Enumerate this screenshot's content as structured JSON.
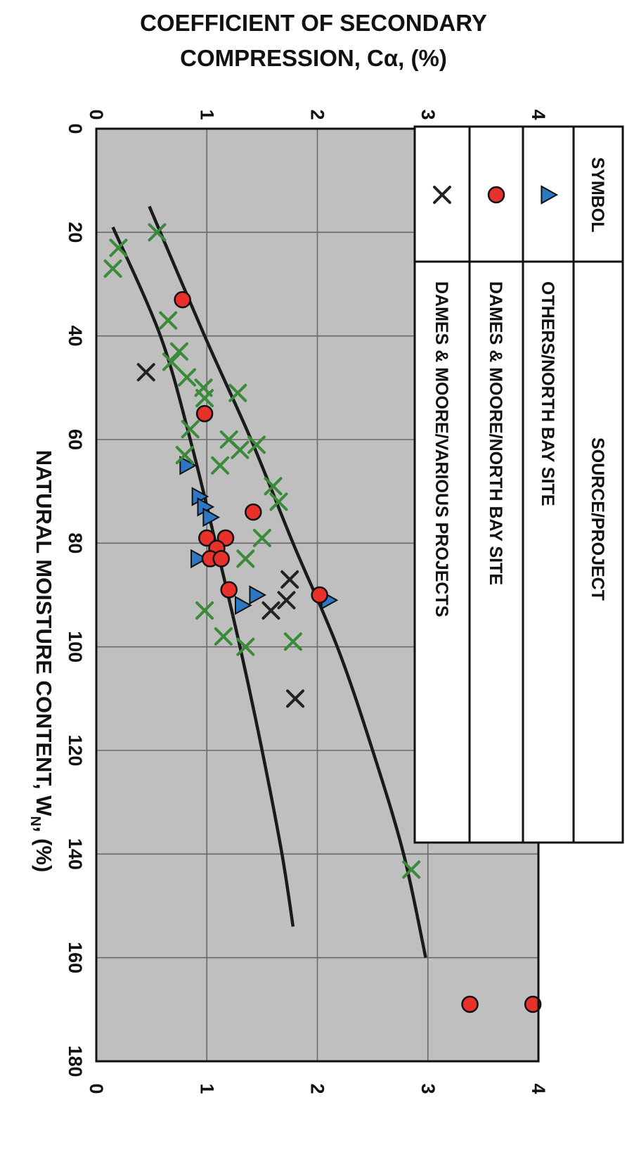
{
  "chart_data": {
    "type": "scatter",
    "title_line1": "COEFFICIENT OF SECONDARY",
    "title_line2": "COMPRESSION, Cα, (%)",
    "xlabel": "NATURAL MOISTURE CONTENT, W",
    "xlabel_sub": "N",
    "xlabel_tail": ", (%)",
    "xlim": [
      0,
      180
    ],
    "ylim": [
      0,
      4
    ],
    "x_ticks": [
      "0",
      "20",
      "40",
      "60",
      "80",
      "100",
      "120",
      "140",
      "160",
      "180"
    ],
    "y_ticks": [
      "0",
      "1",
      "2",
      "3",
      "4"
    ],
    "grid": true,
    "legend": {
      "header_symbol": "SYMBOL",
      "header_source": "SOURCE/PROJECT",
      "position": "top-right",
      "rows": [
        {
          "marker": "triangle",
          "label": "OTHERS/NORTH BAY SITE"
        },
        {
          "marker": "circle",
          "label": "DAMES & MOORE/NORTH BAY SITE"
        },
        {
          "marker": "cross",
          "label": "DAMES & MOORE/VARIOUS PROJECTS"
        }
      ]
    },
    "colors": {
      "plot_bg": "#bfbfbf",
      "grid": "#6a6a6a",
      "circle_fill": "#e8312a",
      "triangle_fill": "#2c78c4",
      "cross_green": "#3a8a3a",
      "cross_black": "#222222",
      "curve": "#1a1a1a"
    },
    "series": [
      {
        "marker": "triangle",
        "points": [
          [
            65,
            0.82
          ],
          [
            71,
            0.93
          ],
          [
            73,
            0.98
          ],
          [
            75,
            1.03
          ],
          [
            83,
            0.92
          ],
          [
            90,
            1.45
          ],
          [
            92,
            1.32
          ],
          [
            91,
            2.1
          ]
        ]
      },
      {
        "marker": "circle",
        "points": [
          [
            33,
            0.78
          ],
          [
            55,
            0.98
          ],
          [
            74,
            1.42
          ],
          [
            79,
            1.0
          ],
          [
            79,
            1.17
          ],
          [
            81,
            1.09
          ],
          [
            83,
            1.03
          ],
          [
            83,
            1.13
          ],
          [
            89,
            1.2
          ],
          [
            90,
            2.02
          ],
          [
            169,
            3.38
          ],
          [
            169,
            3.95
          ]
        ]
      },
      {
        "marker": "cross-green",
        "points": [
          [
            20,
            0.55
          ],
          [
            23,
            0.2
          ],
          [
            27,
            0.15
          ],
          [
            37,
            0.65
          ],
          [
            43,
            0.75
          ],
          [
            45,
            0.68
          ],
          [
            48,
            0.82
          ],
          [
            50,
            0.97
          ],
          [
            51,
            1.28
          ],
          [
            52,
            0.98
          ],
          [
            58,
            0.85
          ],
          [
            60,
            1.2
          ],
          [
            61,
            1.45
          ],
          [
            62,
            1.3
          ],
          [
            63,
            0.8
          ],
          [
            65,
            1.12
          ],
          [
            69,
            1.6
          ],
          [
            72,
            1.65
          ],
          [
            79,
            1.5
          ],
          [
            83,
            1.35
          ],
          [
            93,
            0.98
          ],
          [
            98,
            1.15
          ],
          [
            99,
            1.78
          ],
          [
            100,
            1.35
          ],
          [
            143,
            2.85
          ]
        ]
      },
      {
        "marker": "cross-black",
        "points": [
          [
            47,
            0.45
          ],
          [
            87,
            1.75
          ],
          [
            91,
            1.72
          ],
          [
            93,
            1.58
          ],
          [
            110,
            1.8
          ]
        ]
      }
    ],
    "curves": [
      {
        "points": [
          [
            19,
            0.15
          ],
          [
            40,
            0.58
          ],
          [
            60,
            0.85
          ],
          [
            80,
            1.08
          ],
          [
            100,
            1.3
          ],
          [
            120,
            1.5
          ],
          [
            140,
            1.68
          ],
          [
            154,
            1.78
          ]
        ]
      },
      {
        "points": [
          [
            15,
            0.48
          ],
          [
            40,
            0.98
          ],
          [
            60,
            1.4
          ],
          [
            80,
            1.78
          ],
          [
            100,
            2.18
          ],
          [
            120,
            2.5
          ],
          [
            140,
            2.78
          ],
          [
            160,
            2.98
          ]
        ]
      }
    ]
  }
}
